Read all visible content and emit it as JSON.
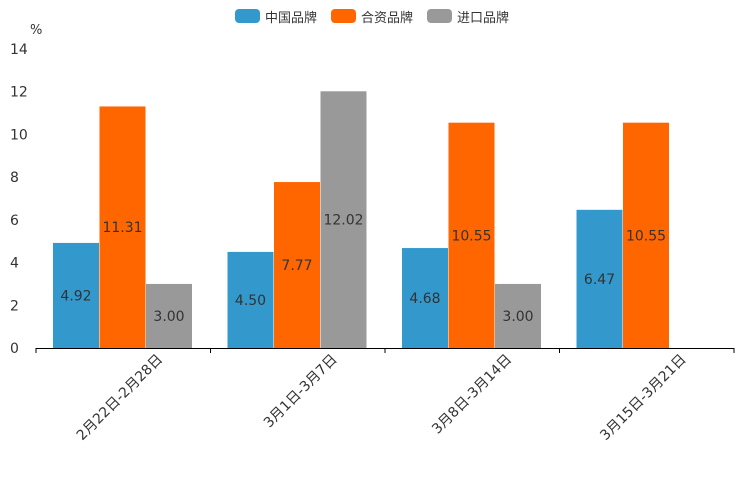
{
  "chart_data": {
    "type": "bar",
    "title": "",
    "ylabel": "%",
    "xlabel": "",
    "ylim": [
      0,
      14
    ],
    "yticks": [
      0,
      2,
      4,
      6,
      8,
      10,
      12,
      14
    ],
    "categories": [
      "2月22日-2月28日",
      "3月1日-3月7日",
      "3月8日-3月14日",
      "3月15日-3月21日"
    ],
    "series": [
      {
        "name": "中国品牌",
        "color": "#3399cc",
        "values": [
          4.92,
          4.5,
          4.68,
          6.47
        ],
        "labels": [
          "4.92",
          "4.50",
          "4.68",
          "6.47"
        ]
      },
      {
        "name": "合资品牌",
        "color": "#ff6600",
        "values": [
          11.31,
          7.77,
          10.55,
          10.55
        ],
        "labels": [
          "11.31",
          "7.77",
          "10.55",
          "10.55"
        ]
      },
      {
        "name": "进口品牌",
        "color": "#999999",
        "values": [
          3.0,
          12.02,
          3.0,
          null
        ],
        "labels": [
          "3.00",
          "12.02",
          "3.00",
          ""
        ]
      }
    ],
    "legend_position": "top-center"
  }
}
